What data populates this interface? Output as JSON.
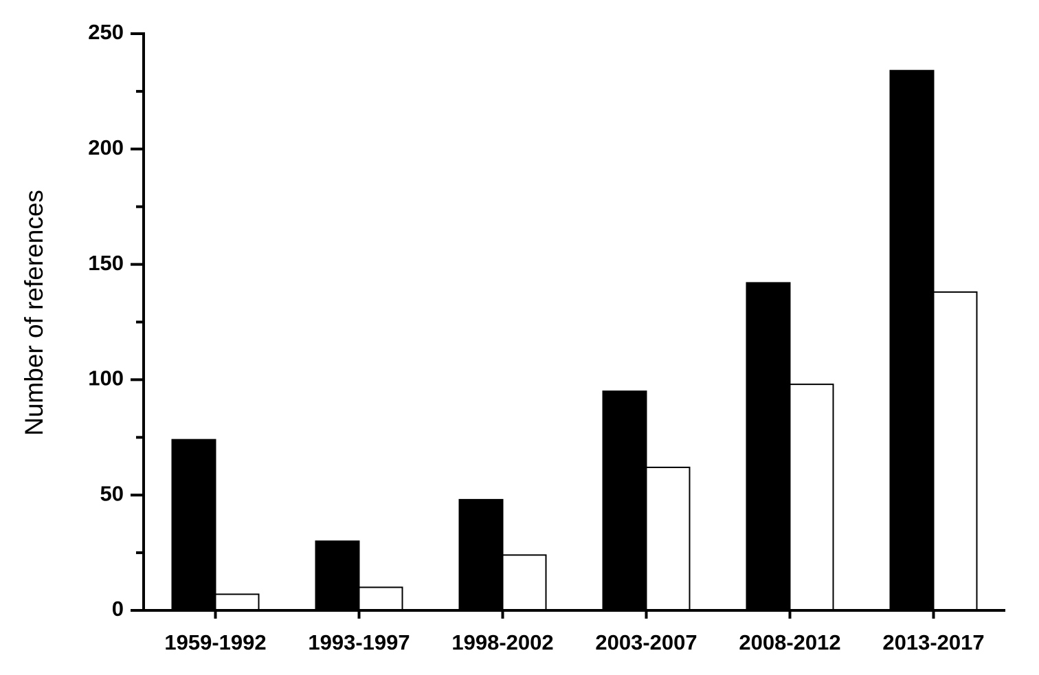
{
  "chart_data": {
    "type": "bar",
    "y_label": "Number of references",
    "categories": [
      "1959-1992",
      "1993-1997",
      "1998-2002",
      "2003-2007",
      "2008-2012",
      "2013-2017"
    ],
    "series": [
      {
        "color": "#000000",
        "values": [
          74,
          30,
          48,
          95,
          142,
          234
        ]
      },
      {
        "color": "#ffffff",
        "values": [
          7,
          10,
          24,
          62,
          98,
          138
        ]
      }
    ],
    "edgecolor": "#000000",
    "ylim": [
      0,
      250
    ],
    "yticks": [
      0,
      50,
      100,
      150,
      200,
      250
    ],
    "minor_yticks": [
      25,
      75,
      125,
      175,
      225
    ],
    "grid": false
  }
}
